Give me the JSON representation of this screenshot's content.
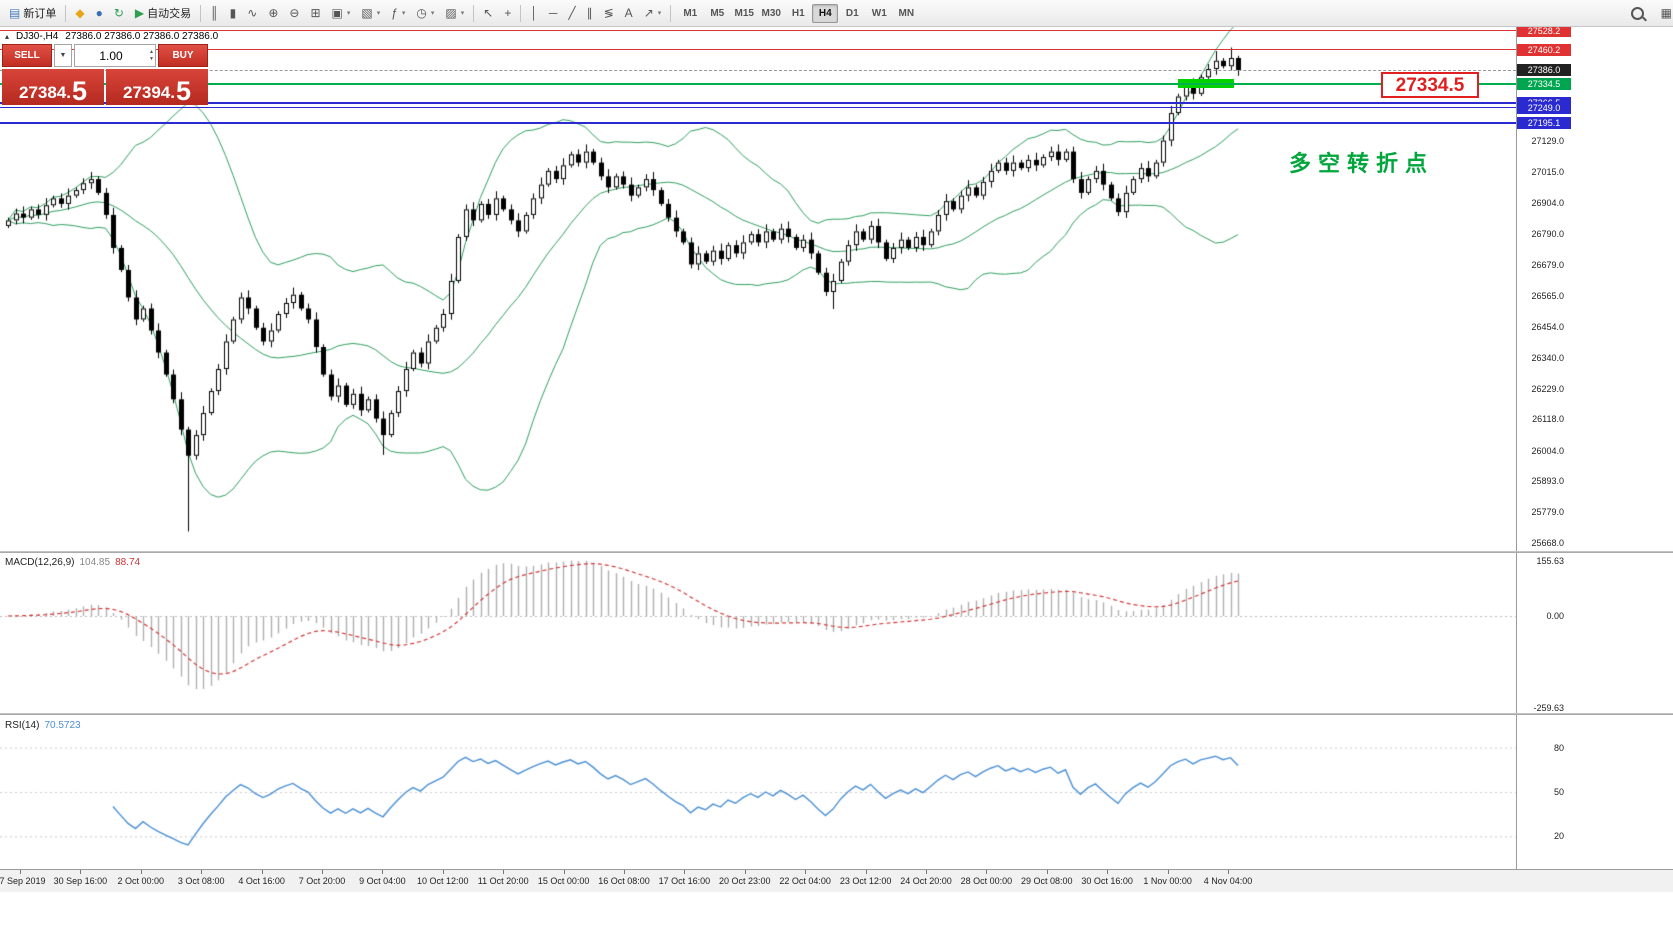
{
  "header": {
    "symbol_period": "DJ30-,H4",
    "ohlc_values": "27386.0 27386.0 27386.0 27386.0"
  },
  "toolbar": {
    "items": [
      {
        "type": "button",
        "name": "new-order-button",
        "icon": "new-order-icon",
        "glyph": "▤",
        "glyph_color": "#4a7ebb",
        "label": "新订单"
      },
      {
        "type": "sep"
      },
      {
        "type": "icon",
        "name": "mql5-community-button",
        "icon": "mql5-icon",
        "glyph": "◆",
        "glyph_color": "#e8a517"
      },
      {
        "type": "icon",
        "name": "accounts-button",
        "icon": "account-icon",
        "glyph": "●",
        "glyph_color": "#3b6fb5"
      },
      {
        "type": "icon",
        "name": "refresh-data-button",
        "icon": "refresh-icon",
        "glyph": "↻",
        "glyph_color": "#2e9e4f"
      },
      {
        "type": "button",
        "name": "autotrading-button",
        "icon": "autotrading-icon",
        "glyph": "▶",
        "glyph_color": "#2e9e4f",
        "label": "自动交易"
      },
      {
        "type": "sep"
      },
      {
        "type": "icon",
        "name": "bar-chart-button",
        "icon": "bar-chart-icon",
        "glyph": "║"
      },
      {
        "type": "icon",
        "name": "candlestick-chart-button",
        "icon": "candlestick-chart-icon",
        "glyph": "▮"
      },
      {
        "type": "icon",
        "name": "line-chart-button",
        "icon": "line-chart-icon",
        "glyph": "∿"
      },
      {
        "type": "icon",
        "name": "zoom-in-button",
        "icon": "zoom-in-icon",
        "glyph": "⊕"
      },
      {
        "type": "icon",
        "name": "zoom-out-button",
        "icon": "zoom-out-icon",
        "glyph": "⊖"
      },
      {
        "type": "icon",
        "name": "tile-windows-button",
        "icon": "tile-windows-icon",
        "glyph": "⊞"
      },
      {
        "type": "icon",
        "name": "new-chart-button",
        "icon": "new-chart-icon",
        "glyph": "▣",
        "dd": true
      },
      {
        "type": "icon",
        "name": "profiles-button",
        "icon": "profiles-icon",
        "glyph": "▧",
        "dd": true
      },
      {
        "type": "icon",
        "name": "indicators-button",
        "icon": "indicators-icon",
        "glyph": "ƒ",
        "dd": true
      },
      {
        "type": "icon",
        "name": "periods-button",
        "icon": "clock-icon",
        "glyph": "◷",
        "dd": true
      },
      {
        "type": "icon",
        "name": "templates-button",
        "icon": "template-icon",
        "glyph": "▨",
        "dd": true
      },
      {
        "type": "sep"
      },
      {
        "type": "icon",
        "name": "cursor-button",
        "icon": "cursor-icon",
        "glyph": "↖"
      },
      {
        "type": "icon",
        "name": "crosshair-button",
        "icon": "crosshair-icon",
        "glyph": "+"
      },
      {
        "type": "sep"
      },
      {
        "type": "icon",
        "name": "vertical-line-button",
        "icon": "vertical-line-icon",
        "glyph": "│"
      },
      {
        "type": "icon",
        "name": "horizontal-line-button",
        "icon": "horizontal-line-icon",
        "glyph": "─"
      },
      {
        "type": "icon",
        "name": "trendline-button",
        "icon": "trendline-icon",
        "glyph": "╱"
      },
      {
        "type": "icon",
        "name": "channel-button",
        "icon": "channel-icon",
        "glyph": "∥"
      },
      {
        "type": "icon",
        "name": "fibonacci-button",
        "icon": "fibonacci-icon",
        "glyph": "≶"
      },
      {
        "type": "icon",
        "name": "text-button",
        "icon": "text-icon",
        "glyph": "A"
      },
      {
        "type": "icon",
        "name": "arrows-button",
        "icon": "arrow-icon",
        "glyph": "↗",
        "dd": true
      },
      {
        "type": "sep"
      },
      {
        "type": "timeframes"
      },
      {
        "type": "spacer"
      },
      {
        "type": "mag",
        "name": "search-zoom-button",
        "icon": "magnifier-icon"
      },
      {
        "type": "icon",
        "name": "window-layout-button",
        "icon": "window-icon",
        "glyph": "▦"
      }
    ],
    "timeframes": [
      "M1",
      "M5",
      "M15",
      "M30",
      "H1",
      "H4",
      "D1",
      "W1",
      "MN"
    ],
    "active_timeframe": "H4"
  },
  "order_panel": {
    "sell_label": "SELL",
    "buy_label": "BUY",
    "volume": "1.00",
    "sell_price_main": "27384.",
    "sell_price_big": "5",
    "buy_price_main": "27394.",
    "buy_price_big": "5"
  },
  "chart_data": {
    "type": "candlestick",
    "symbol": "DJ30-",
    "timeframe": "H4",
    "current": {
      "open": 27386.0,
      "high": 27386.0,
      "low": 27386.0,
      "close": 27386.0,
      "bid": 27384.5,
      "ask": 27394.5
    },
    "price_range": [
      25640,
      27540
    ],
    "first_open": 26820,
    "closes": [
      26840,
      26865,
      26850,
      26880,
      26860,
      26895,
      26920,
      26900,
      26930,
      26950,
      26975,
      26990,
      26940,
      26860,
      26740,
      26660,
      26560,
      26480,
      26520,
      26440,
      26360,
      26280,
      26190,
      26080,
      25985,
      26060,
      26140,
      26220,
      26300,
      26400,
      26480,
      26560,
      26520,
      26450,
      26400,
      26440,
      26500,
      26540,
      26570,
      26520,
      26480,
      26380,
      26280,
      26200,
      26240,
      26170,
      26210,
      26150,
      26190,
      26120,
      26060,
      26140,
      26220,
      26300,
      26360,
      26320,
      26400,
      26450,
      26500,
      26620,
      26780,
      26880,
      26840,
      26900,
      26860,
      26920,
      26880,
      26840,
      26800,
      26860,
      26920,
      26970,
      27020,
      26990,
      27040,
      27080,
      27050,
      27090,
      27050,
      27000,
      26960,
      27000,
      26970,
      26930,
      26960,
      26990,
      26950,
      26900,
      26850,
      26800,
      26760,
      26680,
      26720,
      26690,
      26730,
      26700,
      26750,
      26720,
      26760,
      26790,
      26760,
      26800,
      26770,
      26810,
      26780,
      26740,
      26770,
      26720,
      26650,
      26580,
      26620,
      26690,
      26750,
      26800,
      26770,
      26820,
      26760,
      26700,
      26740,
      26770,
      26740,
      26780,
      26750,
      26800,
      26860,
      26910,
      26880,
      26930,
      26960,
      26930,
      26980,
      27020,
      27050,
      27020,
      27050,
      27030,
      27060,
      27040,
      27070,
      27090,
      27060,
      27090,
      26990,
      26940,
      26990,
      27020,
      26970,
      26920,
      26870,
      26940,
      26990,
      27030,
      27000,
      27050,
      27130,
      27230,
      27290,
      27330,
      27300,
      27360,
      27390,
      27420,
      27400,
      27430,
      27386
    ],
    "wick_specials": {
      "24": {
        "low": 25710
      },
      "50": {
        "low": 25988
      },
      "110": {
        "low": 26518
      },
      "161": {
        "high": 27455
      },
      "163": {
        "high": 27468
      },
      "164": {
        "high": 27438
      }
    },
    "indicators": {
      "bollinger": {
        "period": 20,
        "deviation": 2,
        "color": "#2f9e5f"
      },
      "macd": {
        "label": "MACD(12,26,9)",
        "value_main": "104.85",
        "value_signal": "88.74",
        "scale_labels": [
          "155.63",
          "0.00",
          "-259.63"
        ],
        "histogram_color": "#b0b0b0",
        "signal_color": "#d23b3b"
      },
      "rsi": {
        "label": "RSI(14)",
        "value": "70.5723",
        "levels": [
          80,
          50,
          20
        ],
        "color": "#4a8fd4"
      }
    },
    "levels": [
      {
        "price": 27528.2,
        "label": "27528.2",
        "color": "#e03232",
        "badge_bg": "#e03232",
        "thickness": 1,
        "style": "solid"
      },
      {
        "price": 27460.2,
        "label": "27460.2",
        "color": "#e03232",
        "badge_bg": "#e03232",
        "thickness": 1,
        "style": "solid"
      },
      {
        "price": 27386.0,
        "label": "27386.0",
        "color": "#999999",
        "badge_bg": "#222222",
        "thickness": 1,
        "style": "dashed"
      },
      {
        "price": 27334.5,
        "label": "27334.5",
        "color": "#00b050",
        "badge_bg": "#00a64f",
        "thickness": 2,
        "style": "solid"
      },
      {
        "price": 27266.5,
        "label": "27266.5",
        "color": "#2a2ad0",
        "badge_bg": "#2a2ad0",
        "thickness": 2,
        "style": "solid"
      },
      {
        "price": 27249.0,
        "label": "27249.0",
        "color": "#2a2ad0",
        "badge_bg": "#2a2ad0",
        "thickness": 1,
        "style": "solid"
      },
      {
        "price": 27195.1,
        "label": "27195.1",
        "color": "#2a2ad0",
        "badge_bg": "#2a2ad0",
        "thickness": 2,
        "style": "solid"
      }
    ],
    "price_axis": [
      27129.0,
      27015.0,
      26904.0,
      26790.0,
      26679.0,
      26565.0,
      26454.0,
      26340.0,
      26229.0,
      26118.0,
      26004.0,
      25893.0,
      25779.0,
      25668.0
    ],
    "time_axis": [
      "27 Sep 2019",
      "30 Sep 16:00",
      "2 Oct 00:00",
      "3 Oct 08:00",
      "4 Oct 16:00",
      "7 Oct 20:00",
      "9 Oct 04:00",
      "10 Oct 12:00",
      "11 Oct 20:00",
      "15 Oct 00:00",
      "16 Oct 08:00",
      "17 Oct 16:00",
      "20 Oct 23:00",
      "22 Oct 04:00",
      "23 Oct 12:00",
      "24 Oct 20:00",
      "28 Oct 00:00",
      "29 Oct 08:00",
      "30 Oct 16:00",
      "1 Nov 00:00",
      "4 Nov 04:00"
    ],
    "annotation": {
      "text": "多空转折点",
      "color": "#00a63c"
    },
    "callout": {
      "text": "27334.5",
      "color": "#e02020"
    },
    "highlight_bar": {
      "color": "#00d300"
    }
  }
}
